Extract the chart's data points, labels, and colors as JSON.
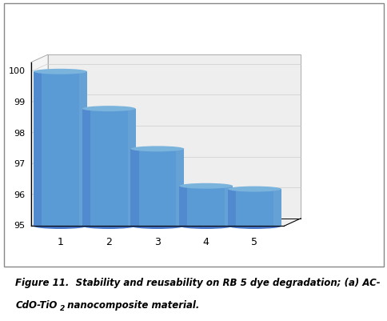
{
  "categories": [
    "1",
    "2",
    "3",
    "4",
    "5"
  ],
  "values": [
    100.0,
    98.8,
    97.5,
    96.3,
    96.2
  ],
  "bar_color_light": "#6fa8d6",
  "bar_color_mid": "#5b9bd5",
  "bar_color_dark": "#4472c4",
  "bar_color_top": "#7ab3dc",
  "ylim": [
    95,
    100
  ],
  "yticks": [
    95,
    96,
    97,
    98,
    99,
    100
  ],
  "background_color": "#ffffff",
  "caption_line1": "Figure 11.  Stability and reusability on RB 5 dye degradation; (a) AC-",
  "caption_line2_pre": "CdO-TiO",
  "caption_line2_sub": "2",
  "caption_line2_post": " nanocomposite material."
}
